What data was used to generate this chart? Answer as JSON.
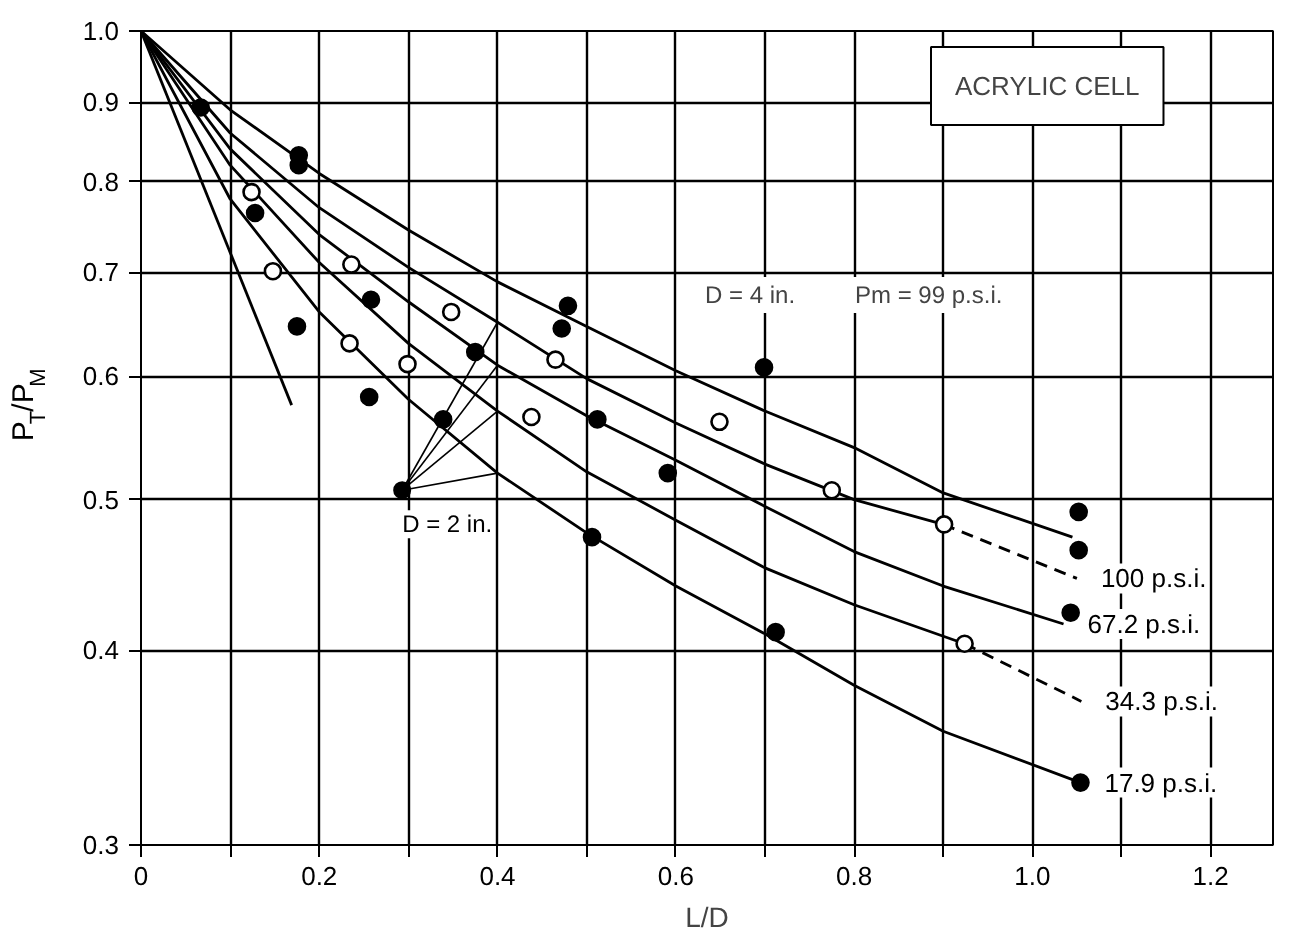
{
  "chart_data": {
    "type": "line",
    "xlabel": "L/D",
    "ylabel": "P$_{T}$/P$_{M}$",
    "xlim": [
      0,
      1.27
    ],
    "ylim": [
      0.3,
      1.0
    ],
    "log": "y",
    "grid": true,
    "marker": "none",
    "xticks": [
      0,
      {
        "value": 0.1,
        "label": null
      },
      0.2,
      {
        "value": 0.3,
        "label": null
      },
      0.4,
      {
        "value": 0.5,
        "label": null
      },
      0.6,
      {
        "value": 0.7,
        "label": null
      },
      0.8,
      {
        "value": 0.9,
        "label": null
      },
      {
        "value": 1.0,
        "label": "1.0"
      },
      {
        "value": 1.1,
        "label": null
      },
      1.2
    ],
    "yticks": [
      0.3,
      0.4,
      0.5,
      0.6,
      0.7,
      0.8,
      0.9,
      {
        "value": 1.0,
        "label": "1.0"
      }
    ],
    "annotations": [
      "ACRYLIC CELL",
      "D = 4 in.",
      "Pm = 99 p.s.i.",
      {
        "text": "D = 2 in.",
        "x": 0.293,
        "y": 0.507
      }
    ],
    "series": [
      {
        "color": "#000000",
        "line_style": "solid",
        "x": [
          0,
          0.1,
          0.2,
          0.3,
          0.4,
          0.5,
          0.6,
          0.7,
          0.8,
          0.9,
          1.045
        ],
        "values": [
          1.0,
          0.89,
          0.81,
          0.745,
          0.69,
          0.646,
          0.605,
          0.57,
          0.54,
          0.505,
          0.473
        ]
      },
      {
        "color": "#000000",
        "line_style": "solid",
        "x": [
          0,
          0.1,
          0.2,
          0.3,
          0.4,
          0.5,
          0.6,
          0.7,
          0.8,
          0.9
        ],
        "values": [
          1.0,
          0.86,
          0.77,
          0.705,
          0.65,
          0.598,
          0.56,
          0.527,
          0.5,
          0.482
        ]
      },
      {
        "name": "100 p.s.i.",
        "color": "#000000",
        "line_style": "dashed",
        "x": [
          0.9,
          1.05
        ],
        "values": [
          0.482,
          0.445
        ]
      },
      {
        "name": "67.2 p.s.i.",
        "color": "#000000",
        "line_style": "solid",
        "x": [
          0,
          0.1,
          0.2,
          0.3,
          0.4,
          0.5,
          0.6,
          0.7,
          0.8,
          0.9,
          1.035
        ],
        "values": [
          1.0,
          0.84,
          0.74,
          0.67,
          0.61,
          0.566,
          0.53,
          0.495,
          0.463,
          0.44,
          0.416
        ]
      },
      {
        "color": "#000000",
        "line_style": "solid",
        "x": [
          0,
          0.1,
          0.2,
          0.3,
          0.4,
          0.5,
          0.6,
          0.7,
          0.8,
          0.924
        ],
        "values": [
          1.0,
          0.82,
          0.71,
          0.63,
          0.57,
          0.521,
          0.485,
          0.452,
          0.428,
          0.404
        ]
      },
      {
        "name": "34.3 p.s.i.",
        "color": "#000000",
        "line_style": "dashed",
        "x": [
          0.924,
          1.055
        ],
        "values": [
          0.404,
          0.371
        ]
      },
      {
        "name": "17.9 p.s.i.",
        "color": "#000000",
        "line_style": "solid",
        "x": [
          0,
          0.1,
          0.2,
          0.3,
          0.4,
          0.5,
          0.6,
          0.7,
          0.8,
          0.9,
          1.054
        ],
        "values": [
          1.0,
          0.78,
          0.66,
          0.58,
          0.52,
          0.476,
          0.44,
          0.41,
          0.38,
          0.355,
          0.329
        ]
      },
      {
        "color": "#000000",
        "line_style": "solid",
        "x": [
          0,
          0.169
        ],
        "values": [
          1.0,
          0.575
        ]
      },
      {
        "type": "scatter",
        "marker": "circle",
        "color": "#000000",
        "x": [
          0.067,
          0.177,
          0.177,
          0.128,
          0.175,
          0.258,
          0.256,
          0.375,
          0.339,
          0.479,
          0.472,
          0.512,
          0.506,
          0.699,
          0.591,
          1.052,
          1.052,
          1.043,
          0.712,
          1.054
        ],
        "values": [
          0.893,
          0.832,
          0.82,
          0.764,
          0.646,
          0.672,
          0.582,
          0.622,
          0.563,
          0.666,
          0.644,
          0.563,
          0.473,
          0.608,
          0.52,
          0.491,
          0.464,
          0.423,
          0.411,
          0.329
        ]
      },
      {
        "type": "scatter",
        "marker": "circle",
        "color": "#ffffff",
        "x": [
          0.124,
          0.148,
          0.236,
          0.234,
          0.299,
          0.348,
          0.465,
          0.438,
          0.649,
          0.775,
          0.901,
          0.924
        ],
        "values": [
          0.788,
          0.701,
          0.708,
          0.63,
          0.611,
          0.66,
          0.615,
          0.565,
          0.561,
          0.507,
          0.482,
          0.404
        ]
      }
    ]
  }
}
